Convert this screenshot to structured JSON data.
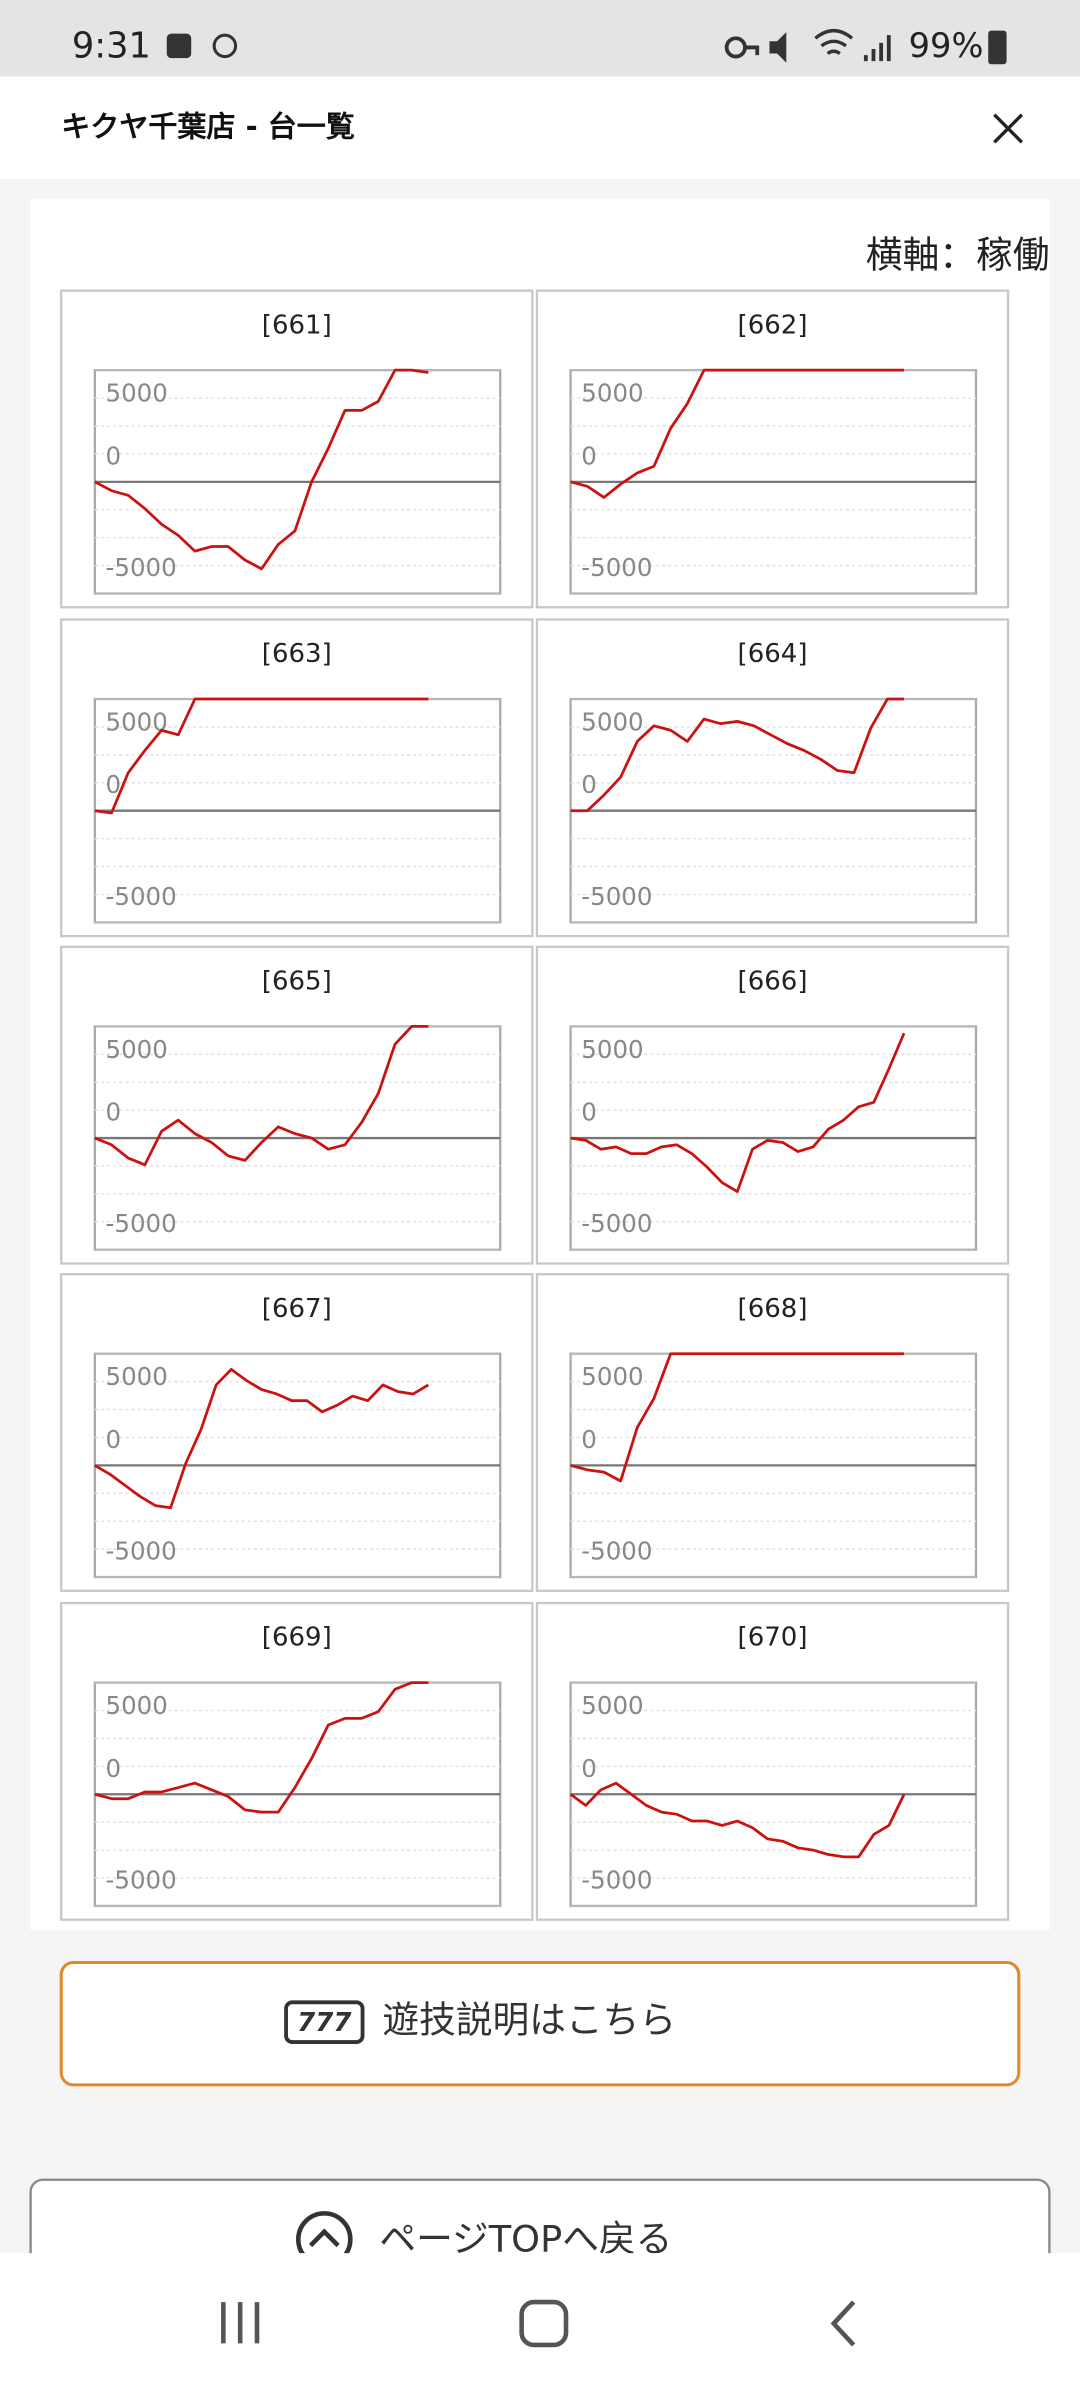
{
  "status_bar": {
    "time": "9:31",
    "battery": "99%"
  },
  "header": {
    "title": "キクヤ千葉店 - 台一覧"
  },
  "axis_note": "横軸：稼働",
  "chart_axes": {
    "ylim": [
      -5000,
      5000
    ],
    "yticks": [
      5000,
      0,
      -5000
    ]
  },
  "charts": [
    {
      "type": "line",
      "title": "[661]",
      "color": "#cc1111",
      "values": [
        0,
        -400,
        -600,
        -1200,
        -1900,
        -2400,
        -3100,
        -2900,
        -2900,
        -3500,
        -3900,
        -2800,
        -2200,
        0,
        1500,
        3200,
        3200,
        3600,
        5000,
        5000,
        4900
      ]
    },
    {
      "type": "line",
      "title": "[662]",
      "color": "#cc1111",
      "values": [
        0,
        -200,
        -700,
        -100,
        400,
        700,
        2400,
        3500,
        5000,
        5000,
        5000,
        5000,
        5000,
        5000,
        5000,
        5000,
        5000,
        5000,
        5000,
        5000,
        5000
      ]
    },
    {
      "type": "line",
      "title": "[663]",
      "color": "#cc1111",
      "values": [
        0,
        -100,
        1700,
        2700,
        3600,
        3400,
        5000,
        5000,
        5000,
        5000,
        5000,
        5000,
        5000,
        5000,
        5000,
        5000,
        5000,
        5000,
        5000,
        5000,
        5000
      ]
    },
    {
      "type": "line",
      "title": "[664]",
      "color": "#cc1111",
      "values": [
        0,
        0,
        700,
        1500,
        3100,
        3800,
        3600,
        3100,
        4100,
        3900,
        4000,
        3800,
        3400,
        3000,
        2700,
        2300,
        1800,
        1700,
        3700,
        5000,
        5000
      ]
    },
    {
      "type": "line",
      "title": "[665]",
      "color": "#cc1111",
      "values": [
        0,
        -300,
        -900,
        -1200,
        300,
        800,
        200,
        -200,
        -800,
        -1000,
        -200,
        500,
        200,
        0,
        -500,
        -300,
        700,
        2000,
        4200,
        5000,
        5000
      ]
    },
    {
      "type": "line",
      "title": "[666]",
      "color": "#cc1111",
      "values": [
        0,
        -100,
        -500,
        -400,
        -700,
        -700,
        -400,
        -300,
        -700,
        -1300,
        -2000,
        -2400,
        -500,
        -100,
        -200,
        -600,
        -400,
        400,
        800,
        1400,
        1600,
        3100,
        4700
      ]
    },
    {
      "type": "line",
      "title": "[667]",
      "color": "#cc1111",
      "values": [
        0,
        -400,
        -900,
        -1400,
        -1800,
        -1900,
        100,
        1600,
        3600,
        4300,
        3800,
        3400,
        3200,
        2900,
        2900,
        2400,
        2700,
        3100,
        2900,
        3600,
        3300,
        3200,
        3600
      ]
    },
    {
      "type": "line",
      "title": "[668]",
      "color": "#cc1111",
      "values": [
        0,
        -200,
        -300,
        -700,
        1700,
        3000,
        5000,
        5000,
        5000,
        5000,
        5000,
        5000,
        5000,
        5000,
        5000,
        5000,
        5000,
        5000,
        5000,
        5000,
        5000
      ]
    },
    {
      "type": "line",
      "title": "[669]",
      "color": "#cc1111",
      "values": [
        0,
        -200,
        -200,
        100,
        100,
        300,
        500,
        200,
        -100,
        -700,
        -800,
        -800,
        300,
        1600,
        3100,
        3400,
        3400,
        3700,
        4700,
        5000,
        5000
      ]
    },
    {
      "type": "line",
      "title": "[670]",
      "color": "#cc1111",
      "values": [
        0,
        -500,
        200,
        500,
        0,
        -500,
        -800,
        -900,
        -1200,
        -1200,
        -1400,
        -1200,
        -1500,
        -2000,
        -2100,
        -2400,
        -2500,
        -2700,
        -2800,
        -2800,
        -1800,
        -1400,
        0
      ]
    }
  ],
  "buttons": {
    "guide_icon": "777",
    "guide": "遊技説明はこちら",
    "top": "ページTOPへ戻る"
  }
}
